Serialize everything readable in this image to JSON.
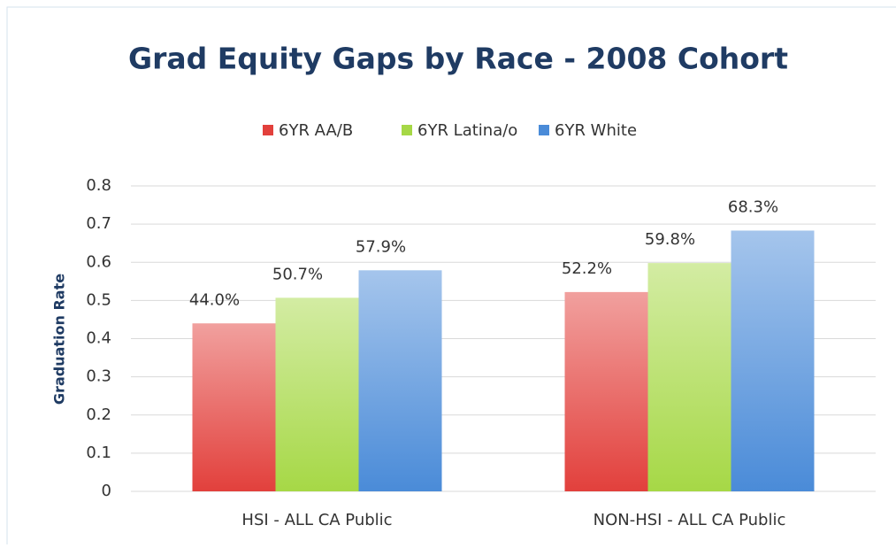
{
  "chart_data": {
    "type": "bar",
    "title": "Grad Equity Gaps by Race - 2008 Cohort",
    "y_label": "Graduation Rate",
    "categories": [
      "HSI - ALL CA Public",
      "NON-HSI - ALL CA Public"
    ],
    "series": [
      {
        "name": "6YR AA/B",
        "color": "#e2403c",
        "values": [
          0.44,
          0.522
        ],
        "value_labels": [
          "44.0%",
          "52.2%"
        ]
      },
      {
        "name": "6YR Latina/o",
        "color": "#a6d846",
        "values": [
          0.507,
          0.598
        ],
        "value_labels": [
          "50.7%",
          "59.8%"
        ]
      },
      {
        "name": "6YR White",
        "color": "#4a8bd8",
        "values": [
          0.579,
          0.683
        ],
        "value_labels": [
          "57.9%",
          "68.3%"
        ]
      }
    ],
    "ylim": [
      0,
      0.8
    ],
    "yticks": [
      0,
      0.1,
      0.2,
      0.3,
      0.4,
      0.5,
      0.6,
      0.7,
      0.8
    ],
    "grid": true,
    "legend": "top"
  }
}
